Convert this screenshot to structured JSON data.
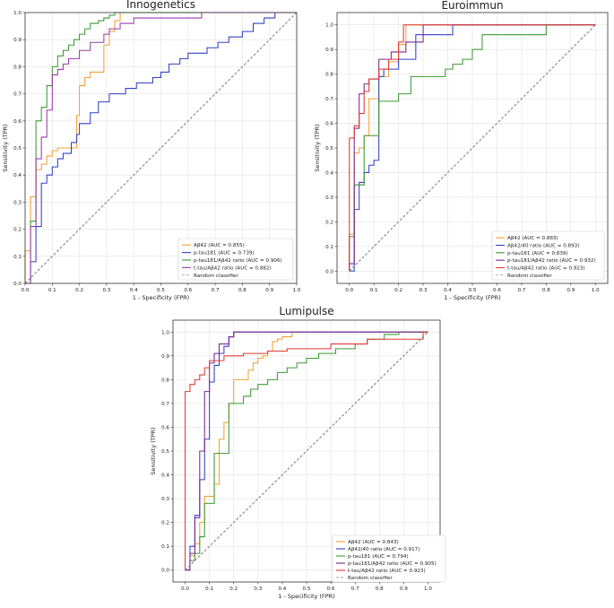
{
  "chart_data": [
    {
      "type": "line",
      "title": "Innogenetics",
      "xlabel": "1 - Specificity (FPR)",
      "ylabel": "Sensitivity (TPR)",
      "xlim": [
        0,
        1
      ],
      "ylim": [
        0,
        1
      ],
      "xticks": [
        "0.0",
        "0.1",
        "0.2",
        "0.3",
        "0.4",
        "0.5",
        "0.6",
        "0.7",
        "0.8",
        "0.9",
        "1.0"
      ],
      "yticks": [
        "0.0",
        "0.1",
        "0.2",
        "0.3",
        "0.4",
        "0.5",
        "0.6",
        "0.7",
        "0.8",
        "0.9",
        "1.0"
      ],
      "grid": true,
      "legend_position": "bottom-right",
      "series": [
        {
          "name": "Aβ42 (AUC = 0.855)",
          "color": "#f0a030",
          "x": [
            0,
            0,
            0.02,
            0.02,
            0.04,
            0.04,
            0.06,
            0.06,
            0.08,
            0.08,
            0.1,
            0.1,
            0.12,
            0.12,
            0.19,
            0.19,
            0.2,
            0.2,
            0.22,
            0.22,
            0.24,
            0.24,
            0.29,
            0.29,
            0.31,
            0.31,
            0.33,
            0.33,
            0.35,
            0.35,
            0.4,
            0.4,
            0.45,
            0.45,
            1.0
          ],
          "y": [
            0,
            0.12,
            0.12,
            0.32,
            0.32,
            0.42,
            0.42,
            0.44,
            0.44,
            0.47,
            0.47,
            0.49,
            0.49,
            0.5,
            0.5,
            0.62,
            0.62,
            0.73,
            0.73,
            0.76,
            0.76,
            0.78,
            0.78,
            0.88,
            0.88,
            0.93,
            0.93,
            0.97,
            0.97,
            1.0,
            1.0,
            1.0,
            1.0,
            1.0,
            1.0
          ]
        },
        {
          "name": "p-tau181 (AUC = 0.739)",
          "color": "#3040c8",
          "x": [
            0,
            0.02,
            0.02,
            0.04,
            0.04,
            0.06,
            0.06,
            0.08,
            0.08,
            0.1,
            0.1,
            0.12,
            0.12,
            0.14,
            0.14,
            0.17,
            0.17,
            0.19,
            0.19,
            0.2,
            0.2,
            0.24,
            0.24,
            0.27,
            0.27,
            0.31,
            0.31,
            0.37,
            0.37,
            0.41,
            0.41,
            0.47,
            0.47,
            0.5,
            0.5,
            0.53,
            0.53,
            0.57,
            0.57,
            0.6,
            0.6,
            0.67,
            0.67,
            0.71,
            0.71,
            0.75,
            0.75,
            0.8,
            0.8,
            0.84,
            0.84,
            0.88,
            0.88,
            0.92,
            0.92,
            1.0
          ],
          "y": [
            0,
            0,
            0.08,
            0.08,
            0.21,
            0.21,
            0.37,
            0.37,
            0.4,
            0.4,
            0.43,
            0.43,
            0.46,
            0.46,
            0.48,
            0.48,
            0.52,
            0.52,
            0.55,
            0.55,
            0.59,
            0.59,
            0.63,
            0.63,
            0.67,
            0.67,
            0.7,
            0.7,
            0.72,
            0.72,
            0.74,
            0.74,
            0.76,
            0.76,
            0.78,
            0.78,
            0.81,
            0.81,
            0.83,
            0.83,
            0.85,
            0.85,
            0.87,
            0.87,
            0.89,
            0.89,
            0.91,
            0.91,
            0.93,
            0.93,
            0.96,
            0.96,
            0.98,
            0.98,
            1.0,
            1.0
          ]
        },
        {
          "name": "p-tau181/Aβ42 ratio (AUC = 0.906)",
          "color": "#3a9a30",
          "x": [
            0,
            0.02,
            0.02,
            0.04,
            0.04,
            0.06,
            0.06,
            0.08,
            0.08,
            0.1,
            0.1,
            0.12,
            0.12,
            0.14,
            0.14,
            0.16,
            0.16,
            0.18,
            0.18,
            0.2,
            0.2,
            0.22,
            0.22,
            0.24,
            0.24,
            0.27,
            0.27,
            0.29,
            0.29,
            0.31,
            0.31,
            0.33,
            0.33,
            1.0
          ],
          "y": [
            0,
            0,
            0.23,
            0.23,
            0.6,
            0.6,
            0.65,
            0.65,
            0.73,
            0.73,
            0.8,
            0.8,
            0.84,
            0.84,
            0.86,
            0.86,
            0.88,
            0.88,
            0.9,
            0.9,
            0.92,
            0.92,
            0.94,
            0.94,
            0.96,
            0.96,
            0.97,
            0.97,
            0.98,
            0.98,
            0.99,
            0.99,
            1.0,
            1.0
          ]
        },
        {
          "name": "t-tau/Aβ42 ratio (AUC = 0.882)",
          "color": "#9a3aa8",
          "x": [
            0,
            0.02,
            0.02,
            0.04,
            0.04,
            0.06,
            0.06,
            0.08,
            0.08,
            0.1,
            0.1,
            0.12,
            0.12,
            0.14,
            0.14,
            0.16,
            0.16,
            0.2,
            0.2,
            0.24,
            0.24,
            0.29,
            0.29,
            0.31,
            0.31,
            0.35,
            0.35,
            0.4,
            0.4,
            0.65,
            0.65,
            1.0
          ],
          "y": [
            0,
            0,
            0.21,
            0.21,
            0.46,
            0.46,
            0.54,
            0.54,
            0.64,
            0.64,
            0.77,
            0.77,
            0.79,
            0.79,
            0.81,
            0.81,
            0.83,
            0.83,
            0.86,
            0.86,
            0.89,
            0.89,
            0.92,
            0.92,
            0.94,
            0.94,
            0.96,
            0.96,
            0.98,
            0.98,
            1.0,
            1.0
          ]
        },
        {
          "name": "Random classifier",
          "color": "#808080",
          "dashed": true,
          "x": [
            0,
            1
          ],
          "y": [
            0,
            1
          ]
        }
      ]
    },
    {
      "type": "line",
      "title": "Euroimmun",
      "xlabel": "1 - Specificity (FPR)",
      "ylabel": "Sensitivity (TPR)",
      "xlim": [
        -0.05,
        1.05
      ],
      "ylim": [
        -0.05,
        1.05
      ],
      "xticks": [
        "0.0",
        "0.1",
        "0.2",
        "0.3",
        "0.4",
        "0.5",
        "0.6",
        "0.7",
        "0.8",
        "0.9",
        "1.0"
      ],
      "yticks": [
        "0.0",
        "0.1",
        "0.2",
        "0.3",
        "0.4",
        "0.5",
        "0.6",
        "0.7",
        "0.8",
        "0.9",
        "1.0"
      ],
      "grid": true,
      "legend_position": "bottom-right",
      "series": [
        {
          "name": "Aβ42 (AUC = 0.883)",
          "color": "#f0a030",
          "x": [
            0,
            0,
            0.02,
            0.02,
            0.04,
            0.04,
            0.06,
            0.06,
            0.08,
            0.08,
            0.12,
            0.12,
            0.16,
            0.16,
            0.2,
            0.2,
            0.23,
            0.23,
            1.0
          ],
          "y": [
            0,
            0.15,
            0.15,
            0.48,
            0.48,
            0.5,
            0.5,
            0.55,
            0.55,
            0.7,
            0.7,
            0.79,
            0.79,
            0.85,
            0.85,
            0.92,
            0.92,
            1.0,
            1.0
          ]
        },
        {
          "name": "Aβ42/40 ratio (AUC = 0.893)",
          "color": "#3040c8",
          "x": [
            0,
            0.02,
            0.02,
            0.04,
            0.04,
            0.06,
            0.06,
            0.08,
            0.08,
            0.1,
            0.1,
            0.12,
            0.12,
            0.14,
            0.14,
            0.2,
            0.2,
            0.27,
            0.27,
            0.42,
            0.42,
            1.0
          ],
          "y": [
            0,
            0,
            0.25,
            0.25,
            0.36,
            0.36,
            0.4,
            0.4,
            0.43,
            0.43,
            0.45,
            0.45,
            0.79,
            0.79,
            0.82,
            0.82,
            0.86,
            0.86,
            0.96,
            0.96,
            1.0,
            1.0
          ]
        },
        {
          "name": "p-tau181 (AUC = 0.839)",
          "color": "#3a9a30",
          "x": [
            0,
            0,
            0.02,
            0.02,
            0.06,
            0.06,
            0.12,
            0.12,
            0.2,
            0.2,
            0.25,
            0.25,
            0.33,
            0.33,
            0.39,
            0.39,
            0.42,
            0.42,
            0.46,
            0.46,
            0.5,
            0.5,
            0.54,
            0.54,
            0.8,
            0.8,
            1.0
          ],
          "y": [
            0,
            0.14,
            0.14,
            0.35,
            0.35,
            0.55,
            0.55,
            0.69,
            0.69,
            0.72,
            0.72,
            0.79,
            0.79,
            0.79,
            0.79,
            0.82,
            0.82,
            0.84,
            0.84,
            0.86,
            0.86,
            0.9,
            0.9,
            0.96,
            0.96,
            1.0,
            1.0
          ]
        },
        {
          "name": "p-tau181/Aβ42 ratio (AUC = 0.932)",
          "color": "#7a2890",
          "x": [
            0,
            0,
            0.02,
            0.02,
            0.04,
            0.04,
            0.06,
            0.06,
            0.08,
            0.08,
            0.12,
            0.12,
            0.17,
            0.17,
            0.23,
            0.23,
            0.3,
            0.3,
            1.0
          ],
          "y": [
            0,
            0.03,
            0.03,
            0.58,
            0.58,
            0.72,
            0.72,
            0.76,
            0.76,
            0.78,
            0.78,
            0.86,
            0.86,
            0.89,
            0.89,
            0.93,
            0.93,
            1.0,
            1.0
          ]
        },
        {
          "name": "t-tau/Aβ42 ratio (AUC = 0.923)",
          "color": "#e03a30",
          "x": [
            0,
            0,
            0.02,
            0.02,
            0.04,
            0.04,
            0.06,
            0.06,
            0.08,
            0.08,
            0.12,
            0.12,
            0.16,
            0.16,
            0.2,
            0.2,
            0.22,
            0.22,
            1.0
          ],
          "y": [
            0,
            0.54,
            0.54,
            0.59,
            0.59,
            0.64,
            0.64,
            0.73,
            0.73,
            0.78,
            0.78,
            0.82,
            0.82,
            0.86,
            0.86,
            0.93,
            0.93,
            1.0,
            1.0
          ]
        },
        {
          "name": "Random classifier",
          "color": "#808080",
          "dashed": true,
          "x": [
            0,
            1
          ],
          "y": [
            0,
            1
          ]
        }
      ]
    },
    {
      "type": "line",
      "title": "Lumipulse",
      "xlabel": "1 - Specificity (FPR)",
      "ylabel": "Sensitivity (TPR)",
      "xlim": [
        -0.05,
        1.05
      ],
      "ylim": [
        -0.05,
        1.05
      ],
      "xticks": [
        "0.0",
        "0.1",
        "0.2",
        "0.3",
        "0.4",
        "0.5",
        "0.6",
        "0.7",
        "0.8",
        "0.9",
        "1.0"
      ],
      "yticks": [
        "0.0",
        "0.1",
        "0.2",
        "0.3",
        "0.4",
        "0.5",
        "0.6",
        "0.7",
        "0.8",
        "0.9",
        "1.0"
      ],
      "grid": true,
      "legend_position": "bottom-right",
      "series": [
        {
          "name": "Aβ42 (AUC = 0.843)",
          "color": "#f0a030",
          "x": [
            0,
            0.02,
            0.02,
            0.04,
            0.04,
            0.06,
            0.06,
            0.08,
            0.08,
            0.12,
            0.12,
            0.14,
            0.14,
            0.16,
            0.16,
            0.18,
            0.18,
            0.2,
            0.2,
            0.26,
            0.26,
            0.28,
            0.28,
            0.3,
            0.3,
            0.32,
            0.32,
            0.34,
            0.34,
            0.36,
            0.36,
            0.38,
            0.38,
            0.4,
            0.4,
            0.44,
            0.44,
            0.5,
            0.5,
            1.0
          ],
          "y": [
            0,
            0,
            0.06,
            0.06,
            0.11,
            0.11,
            0.2,
            0.2,
            0.31,
            0.31,
            0.36,
            0.36,
            0.55,
            0.55,
            0.62,
            0.62,
            0.7,
            0.7,
            0.8,
            0.8,
            0.84,
            0.84,
            0.87,
            0.87,
            0.89,
            0.89,
            0.9,
            0.9,
            0.92,
            0.92,
            0.96,
            0.96,
            0.97,
            0.97,
            0.98,
            0.98,
            1.0,
            1.0,
            1.0,
            1.0
          ]
        },
        {
          "name": "Aβ42/40 ratio (AUC = 0.917)",
          "color": "#3040c8",
          "x": [
            0,
            0.02,
            0.02,
            0.04,
            0.04,
            0.06,
            0.06,
            0.08,
            0.08,
            0.1,
            0.1,
            0.12,
            0.12,
            0.14,
            0.14,
            0.16,
            0.16,
            0.18,
            0.18,
            0.2,
            0.2,
            0.3,
            0.3,
            1.0
          ],
          "y": [
            0,
            0,
            0.1,
            0.1,
            0.23,
            0.23,
            0.38,
            0.38,
            0.55,
            0.55,
            0.79,
            0.79,
            0.86,
            0.86,
            0.91,
            0.91,
            0.94,
            0.94,
            0.98,
            0.98,
            1.0,
            1.0,
            1.0,
            1.0
          ]
        },
        {
          "name": "p-tau181 (AUC = 0.794)",
          "color": "#3a9a30",
          "x": [
            0,
            0.02,
            0.02,
            0.04,
            0.04,
            0.06,
            0.06,
            0.08,
            0.08,
            0.12,
            0.12,
            0.18,
            0.18,
            0.24,
            0.24,
            0.27,
            0.27,
            0.3,
            0.3,
            0.34,
            0.34,
            0.38,
            0.38,
            0.42,
            0.42,
            0.46,
            0.46,
            0.5,
            0.5,
            0.55,
            0.55,
            0.62,
            0.62,
            0.7,
            0.7,
            0.75,
            0.75,
            0.82,
            0.82,
            0.88,
            0.88,
            1.0
          ],
          "y": [
            0,
            0,
            0.04,
            0.04,
            0.07,
            0.07,
            0.14,
            0.14,
            0.28,
            0.28,
            0.49,
            0.49,
            0.7,
            0.7,
            0.73,
            0.73,
            0.76,
            0.76,
            0.78,
            0.78,
            0.8,
            0.8,
            0.83,
            0.83,
            0.85,
            0.85,
            0.87,
            0.87,
            0.89,
            0.89,
            0.91,
            0.91,
            0.93,
            0.93,
            0.95,
            0.95,
            0.97,
            0.97,
            0.99,
            0.99,
            1.0,
            1.0
          ]
        },
        {
          "name": "p-tau181/Aβ42 ratio (AUC = 0.905)",
          "color": "#7a2890",
          "x": [
            0,
            0.02,
            0.02,
            0.04,
            0.04,
            0.06,
            0.06,
            0.08,
            0.08,
            0.1,
            0.1,
            0.12,
            0.12,
            0.14,
            0.14,
            0.18,
            0.18,
            0.2,
            0.2,
            1.0
          ],
          "y": [
            0,
            0,
            0.07,
            0.07,
            0.22,
            0.22,
            0.5,
            0.5,
            0.75,
            0.75,
            0.87,
            0.87,
            0.91,
            0.91,
            0.95,
            0.95,
            0.98,
            0.98,
            1.0,
            1.0
          ]
        },
        {
          "name": "t-tau/Aβ42 ratio (AUC = 0.923)",
          "color": "#e03a30",
          "x": [
            0,
            0,
            0.02,
            0.02,
            0.04,
            0.04,
            0.06,
            0.06,
            0.08,
            0.08,
            0.1,
            0.1,
            0.16,
            0.16,
            0.24,
            0.24,
            0.34,
            0.34,
            0.42,
            0.42,
            0.6,
            0.6,
            0.75,
            0.75,
            0.98,
            0.98,
            1.0
          ],
          "y": [
            0,
            0.75,
            0.75,
            0.78,
            0.78,
            0.8,
            0.8,
            0.82,
            0.82,
            0.85,
            0.85,
            0.88,
            0.88,
            0.9,
            0.9,
            0.91,
            0.91,
            0.92,
            0.92,
            0.93,
            0.93,
            0.95,
            0.95,
            0.97,
            0.97,
            1.0,
            1.0
          ]
        },
        {
          "name": "Random classifier",
          "color": "#808080",
          "dashed": true,
          "x": [
            0,
            1
          ],
          "y": [
            0,
            1
          ]
        }
      ]
    }
  ]
}
